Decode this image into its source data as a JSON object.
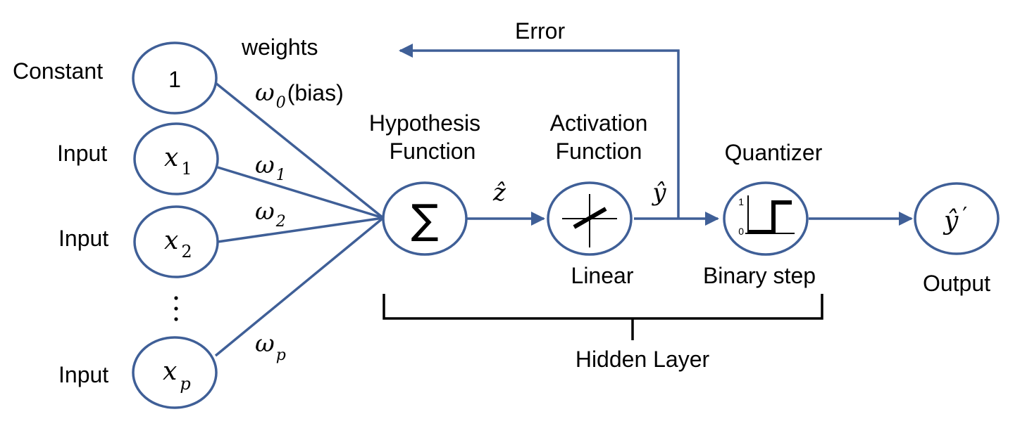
{
  "colors": {
    "edge": "#3f5f97",
    "text": "#000000",
    "background": "#ffffff"
  },
  "labels": {
    "weights": "weights",
    "error": "Error",
    "constant": "Constant",
    "input": "Input",
    "hypothesis_line1": "Hypothesis",
    "hypothesis_line2": "Function",
    "activation_line1": "Activation",
    "activation_line2": "Function",
    "quantizer": "Quantizer",
    "linear": "Linear",
    "binary_step": "Binary step",
    "output": "Output",
    "hidden_layer": "Hidden Layer",
    "bias": "(bias)"
  },
  "nodes": {
    "constant_value": "1",
    "x_symbol": "x",
    "x1_sub": "1",
    "x2_sub": "2",
    "xp_sub": "p",
    "sum_symbol": "∑",
    "output_symbol": "ŷ",
    "output_prime": "′"
  },
  "weights": {
    "symbol": "ω",
    "w0_sub": "0",
    "w1_sub": "1",
    "w2_sub": "2",
    "wp_sub": "p"
  },
  "signals": {
    "z_hat": "ẑ",
    "y_hat": "ŷ"
  },
  "quantizer_ticks": {
    "high": "1",
    "low": "0"
  },
  "icons": {
    "sum": "summation-icon",
    "linear": "linear-activation-icon",
    "step": "binary-step-icon",
    "ellipsis": "vertical-ellipsis-icon"
  }
}
